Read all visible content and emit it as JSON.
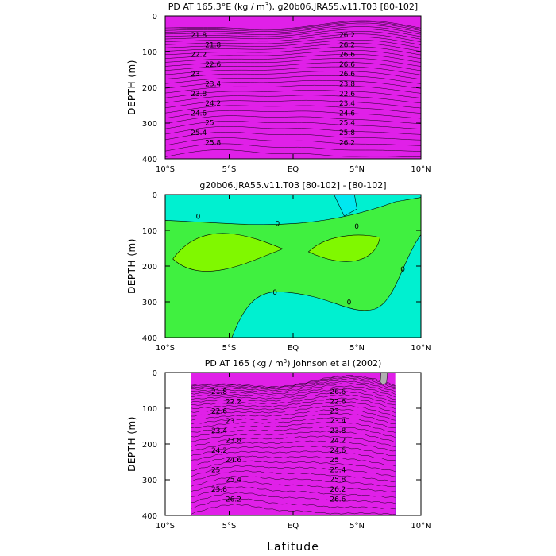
{
  "chart_data": [
    {
      "type": "heatmap",
      "subtype": "filled-contour",
      "title_parts": [
        "PD AT 165.3°E (kg / m",
        "3",
        "), g20b06.JRA55.v11.T03 [80-102]"
      ],
      "ylabel": "DEPTH (m)",
      "xlabel": "",
      "x_ticks": [
        "10°S",
        "5°S",
        "EQ",
        "5°N",
        "10°N"
      ],
      "y_ticks": [
        "0",
        "100",
        "200",
        "300",
        "400"
      ],
      "xlim": [
        -10,
        10
      ],
      "ylim": [
        400,
        0
      ],
      "contour_labels": [
        "21.8",
        "21.8",
        "22.2",
        "22.6",
        "23",
        "23.4",
        "23.8",
        "24.2",
        "24.6",
        "25",
        "25.4",
        "25.8",
        "26.2",
        "26.2",
        "26.6",
        "26.6",
        "26.6",
        "23.8",
        "22.6",
        "23.4",
        "24.6",
        "25.4",
        "25.8",
        "26.2"
      ]
    },
    {
      "type": "heatmap",
      "subtype": "filled-contour-difference",
      "title_parts": [
        "g20b06.JRA55.v11.T03 [80-102] -  [80-102]"
      ],
      "ylabel": "DEPTH (m)",
      "xlabel": "",
      "x_ticks": [
        "10°S",
        "5°S",
        "EQ",
        "5°N",
        "10°N"
      ],
      "y_ticks": [
        "0",
        "100",
        "200",
        "300",
        "400"
      ],
      "xlim": [
        -10,
        10
      ],
      "ylim": [
        400,
        0
      ],
      "contour_labels": [
        "0",
        "0",
        "0",
        "0",
        "0",
        "0"
      ]
    },
    {
      "type": "heatmap",
      "subtype": "filled-contour",
      "title_parts": [
        "PD AT 165 (kg / m",
        "3",
        ") Johnson et al (2002)"
      ],
      "ylabel": "DEPTH (m)",
      "xlabel": "Latitude",
      "x_ticks": [
        "10°S",
        "5°S",
        "EQ",
        "5°N",
        "10°N"
      ],
      "y_ticks": [
        "0",
        "100",
        "200",
        "300",
        "400"
      ],
      "xlim": [
        -10,
        10
      ],
      "ylim": [
        400,
        0
      ],
      "data_xrange": [
        -8,
        8
      ],
      "contour_labels": [
        "21.8",
        "22.2",
        "22.6",
        "23",
        "23.4",
        "23.8",
        "24.2",
        "24.6",
        "25",
        "25.4",
        "25.8",
        "26.2",
        "26.6",
        "22.6",
        "23",
        "23.4",
        "23.8",
        "24.2",
        "24.6",
        "25",
        "25.4",
        "25.8",
        "26.2",
        "26.6"
      ]
    }
  ]
}
